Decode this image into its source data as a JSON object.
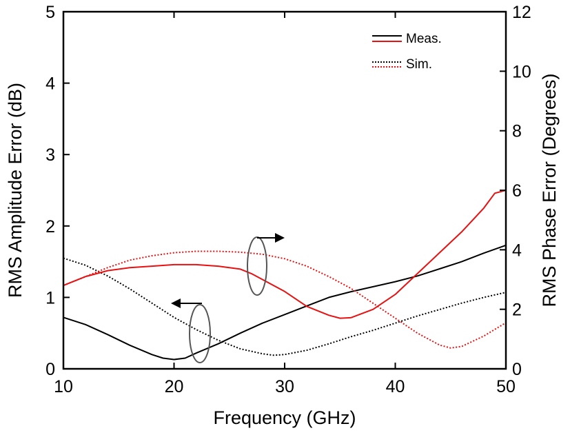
{
  "chart_data": {
    "type": "line",
    "xlabel": "Frequency (GHz)",
    "ylabel_left": "RMS Amplitude Error (dB)",
    "ylabel_right": "RMS Phase Error (Degrees)",
    "xlim": [
      10,
      50
    ],
    "ylim_left": [
      0,
      5
    ],
    "ylim_right": [
      0,
      12
    ],
    "x_ticks": [
      10,
      20,
      30,
      40,
      50
    ],
    "y_left_ticks": [
      0,
      1,
      2,
      3,
      4,
      5
    ],
    "y_right_ticks": [
      0,
      2,
      4,
      6,
      8,
      10,
      12
    ],
    "grid": false,
    "legend": {
      "position": "top-right",
      "entries": [
        {
          "label": "Meas.",
          "style": "solid"
        },
        {
          "label": "Sim.",
          "style": "dotted"
        }
      ]
    },
    "colors": {
      "amplitude": "#000000",
      "phase": "#e81010"
    },
    "series": [
      {
        "name": "Amplitude Meas.",
        "axis": "left",
        "style": "solid",
        "color": "#000000",
        "x": [
          10,
          12,
          14,
          16,
          18,
          19,
          20,
          21,
          22,
          24,
          26,
          28,
          30,
          32,
          34,
          36,
          38,
          40,
          42,
          44,
          46,
          48,
          50
        ],
        "y": [
          0.72,
          0.62,
          0.48,
          0.33,
          0.2,
          0.15,
          0.13,
          0.15,
          0.22,
          0.35,
          0.5,
          0.64,
          0.76,
          0.88,
          1.0,
          1.08,
          1.15,
          1.22,
          1.3,
          1.4,
          1.5,
          1.62,
          1.73
        ]
      },
      {
        "name": "Amplitude Sim.",
        "axis": "left",
        "style": "dotted",
        "color": "#000000",
        "x": [
          10,
          12,
          14,
          16,
          18,
          20,
          22,
          24,
          26,
          28,
          29,
          30,
          32,
          34,
          36,
          38,
          40,
          42,
          44,
          46,
          48,
          50
        ],
        "y": [
          1.55,
          1.45,
          1.3,
          1.12,
          0.92,
          0.72,
          0.55,
          0.4,
          0.28,
          0.21,
          0.19,
          0.2,
          0.26,
          0.35,
          0.45,
          0.54,
          0.64,
          0.74,
          0.83,
          0.92,
          1.0,
          1.07
        ]
      },
      {
        "name": "Phase Meas.",
        "axis": "right",
        "style": "solid",
        "color": "#e81010",
        "x": [
          10,
          12,
          14,
          16,
          18,
          20,
          22,
          24,
          26,
          27,
          28,
          30,
          32,
          34,
          35,
          36,
          38,
          40,
          42,
          44,
          46,
          48,
          49,
          50
        ],
        "y": [
          2.8,
          3.1,
          3.3,
          3.4,
          3.45,
          3.5,
          3.5,
          3.45,
          3.35,
          3.2,
          3.0,
          2.6,
          2.1,
          1.8,
          1.7,
          1.72,
          2.0,
          2.5,
          3.2,
          3.9,
          4.6,
          5.4,
          5.9,
          6.0
        ]
      },
      {
        "name": "Phase Sim.",
        "axis": "right",
        "style": "dotted",
        "color": "#e81010",
        "x": [
          10,
          12,
          14,
          16,
          18,
          20,
          22,
          24,
          26,
          28,
          30,
          32,
          34,
          36,
          38,
          40,
          42,
          44,
          45,
          46,
          48,
          50
        ],
        "y": [
          2.8,
          3.1,
          3.4,
          3.65,
          3.8,
          3.9,
          3.95,
          3.95,
          3.92,
          3.85,
          3.7,
          3.45,
          3.1,
          2.7,
          2.2,
          1.7,
          1.2,
          0.8,
          0.7,
          0.75,
          1.1,
          1.55
        ]
      }
    ]
  }
}
